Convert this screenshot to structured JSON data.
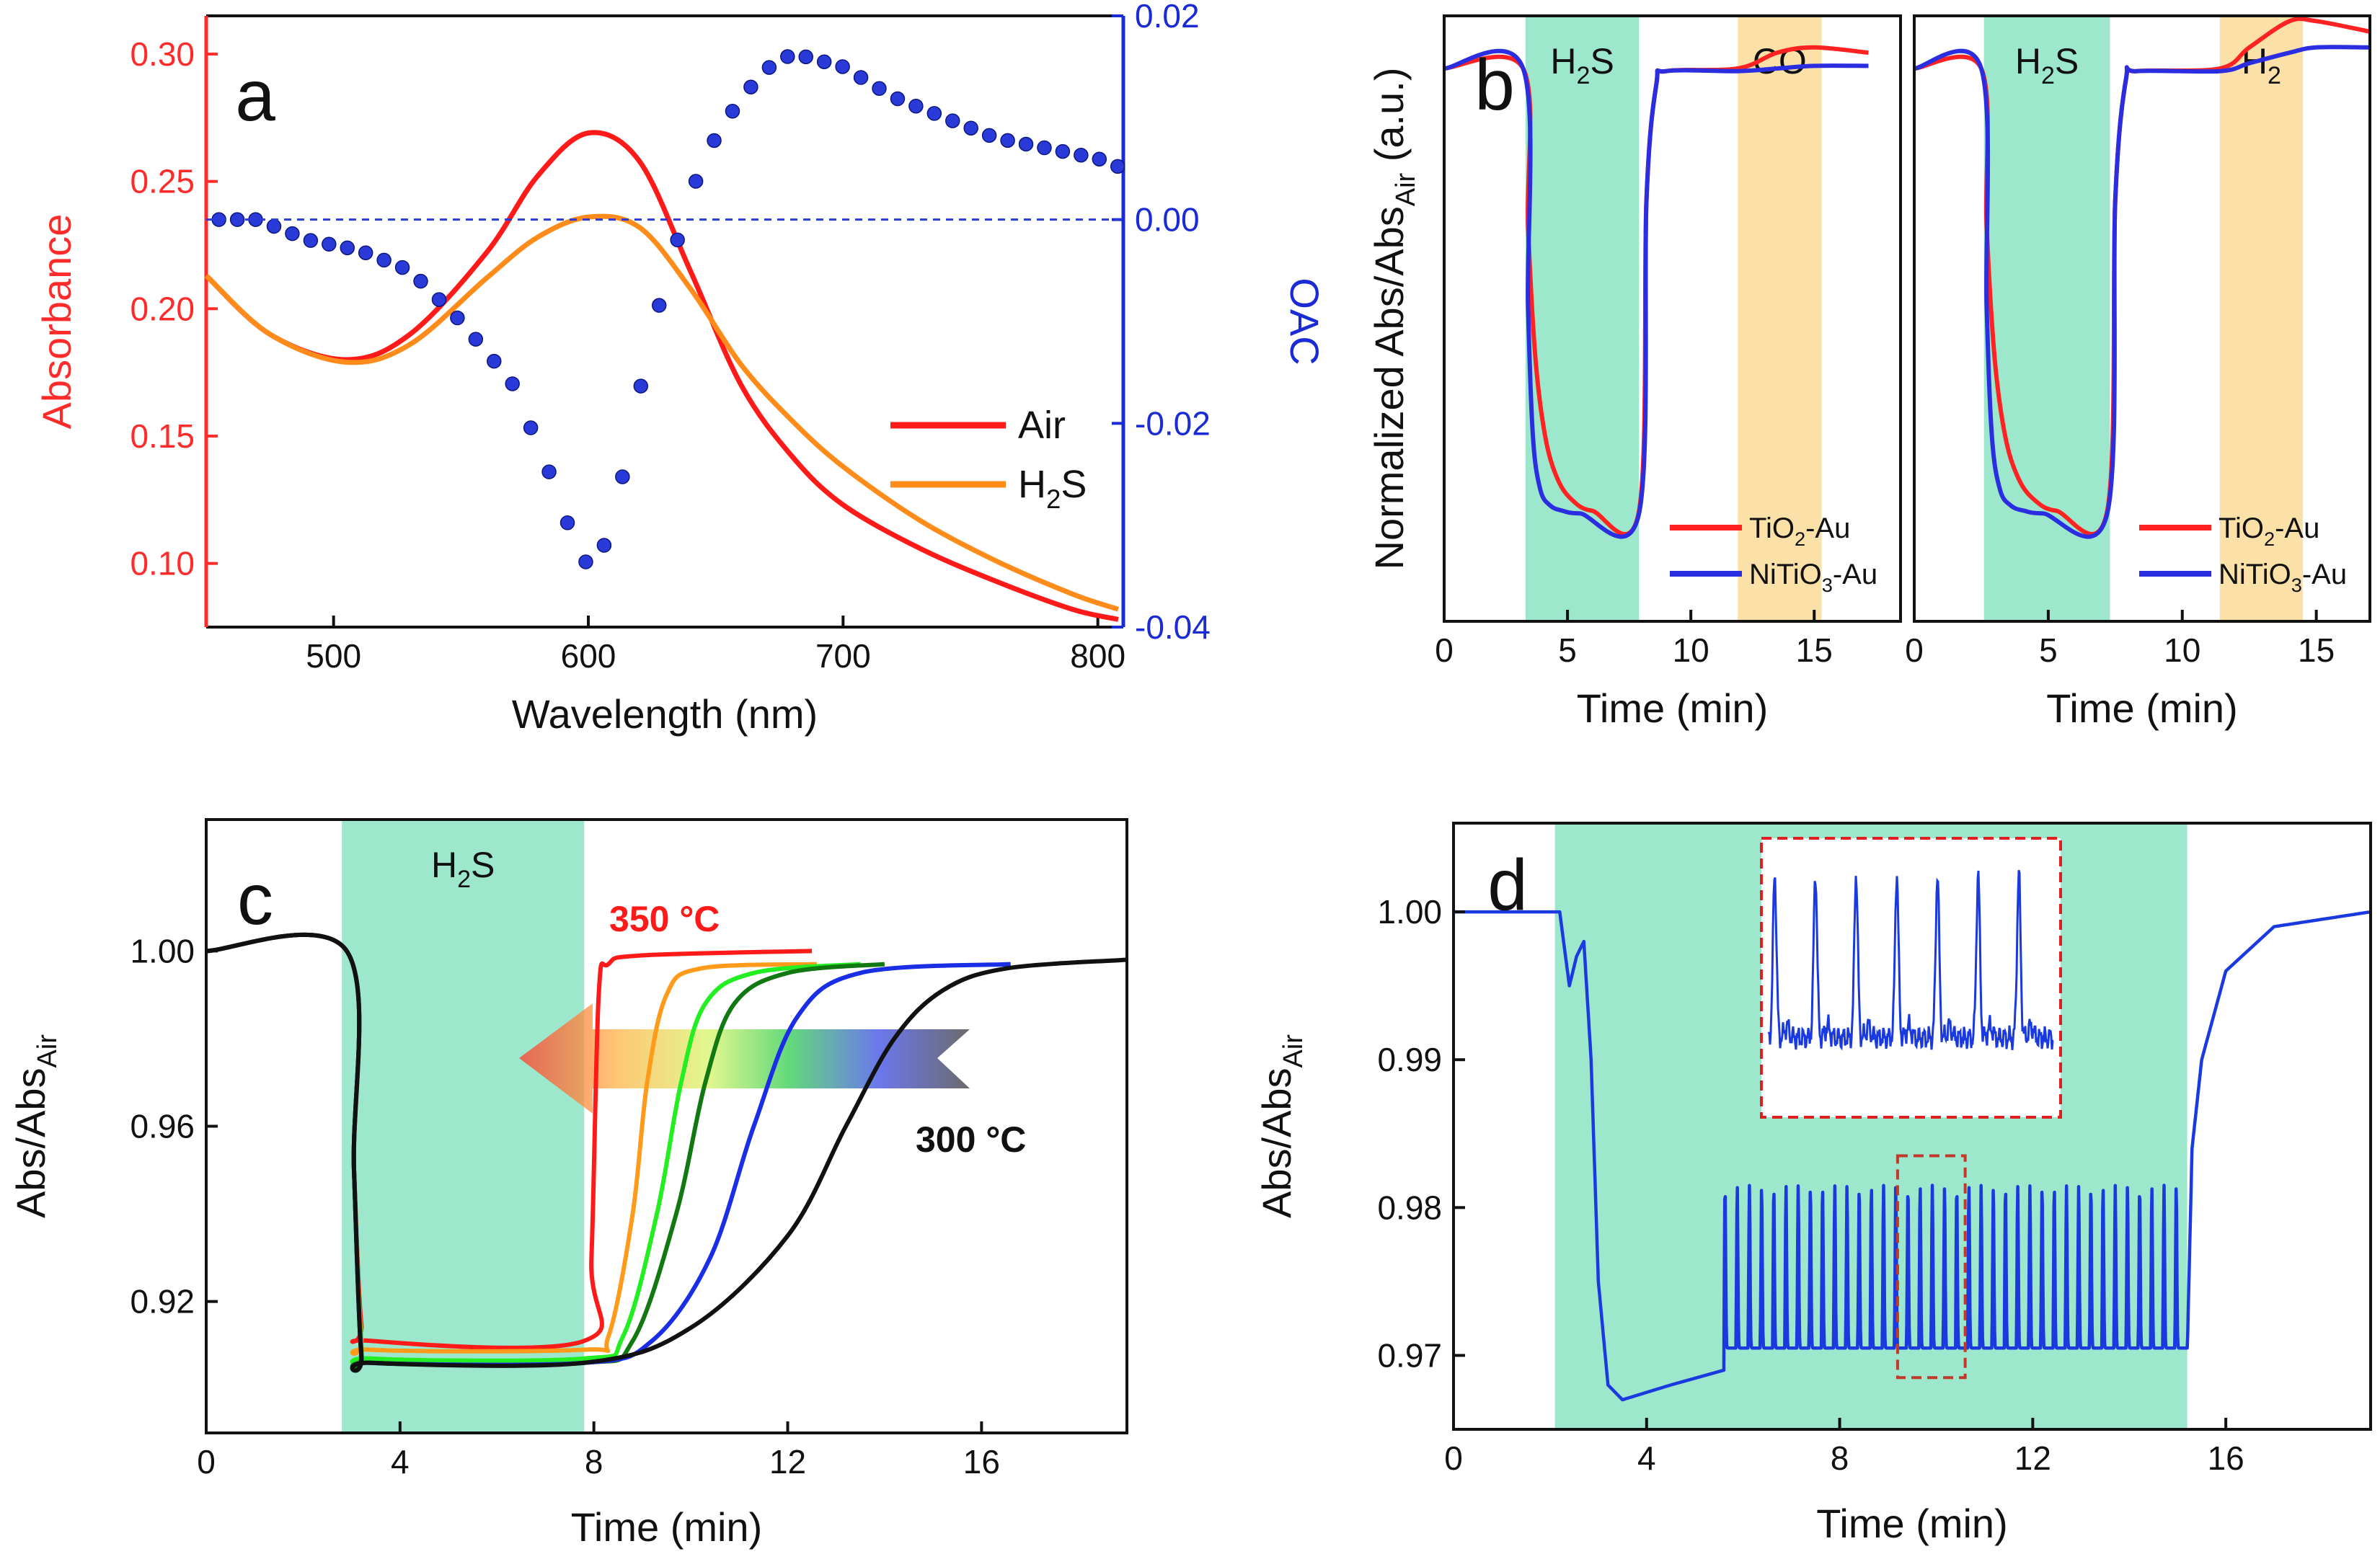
{
  "chart_data": [
    {
      "panel": "a",
      "type": "line",
      "xlabel": "Wavelength (nm)",
      "ylabel": "Absorbance",
      "y2label": "OAC",
      "xlim": [
        450,
        810
      ],
      "ylim": [
        0.075,
        0.315
      ],
      "y2lim": [
        -0.04,
        0.02
      ],
      "xticks": [
        "500",
        "600",
        "700",
        "800"
      ],
      "xtick_values": [
        500,
        600,
        700,
        800
      ],
      "yticks": [
        "0.10",
        "0.15",
        "0.20",
        "0.25",
        "0.30"
      ],
      "ytick_values": [
        0.1,
        0.15,
        0.2,
        0.25,
        0.3
      ],
      "y2ticks": [
        "-0.04",
        "-0.02",
        "0.00",
        "0.02"
      ],
      "y2tick_values": [
        -0.04,
        -0.02,
        0.0,
        0.02
      ],
      "legend_position": "right",
      "colors": {
        "axis_left": "#ff2a2a",
        "axis_right": "#1a2bd6"
      },
      "series": [
        {
          "name": "Air",
          "color": "#ff1a1a",
          "x": [
            450,
            475,
            505,
            530,
            560,
            580,
            600,
            620,
            640,
            660,
            680,
            700,
            730,
            760,
            790,
            808
          ],
          "y": [
            0.213,
            0.19,
            0.18,
            0.19,
            0.222,
            0.252,
            0.269,
            0.258,
            0.215,
            0.17,
            0.142,
            0.123,
            0.106,
            0.093,
            0.082,
            0.078
          ]
        },
        {
          "name_parts": [
            "H",
            "2",
            "S"
          ],
          "color": "#ff8c1a",
          "x": [
            450,
            475,
            505,
            530,
            560,
            580,
            600,
            620,
            640,
            660,
            680,
            700,
            730,
            760,
            790,
            808
          ],
          "y": [
            0.213,
            0.19,
            0.179,
            0.186,
            0.212,
            0.228,
            0.236,
            0.232,
            0.208,
            0.178,
            0.156,
            0.138,
            0.117,
            0.101,
            0.088,
            0.082
          ]
        },
        {
          "role": "OAC",
          "axis": "right",
          "style": "dots",
          "color": "#2a3ad8",
          "x": [
            450,
            470,
            490,
            510,
            530,
            550,
            570,
            585,
            595,
            600,
            605,
            612,
            620,
            630,
            645,
            660,
            675,
            685,
            700,
            720,
            740,
            760,
            780,
            800,
            810
          ],
          "y": [
            0.0,
            0.0,
            -0.002,
            -0.003,
            -0.005,
            -0.01,
            -0.016,
            -0.025,
            -0.032,
            -0.034,
            -0.033,
            -0.027,
            -0.017,
            -0.006,
            0.006,
            0.012,
            0.016,
            0.016,
            0.015,
            0.012,
            0.01,
            0.008,
            0.007,
            0.006,
            0.005
          ]
        },
        {
          "role": "zero-reference",
          "axis": "right",
          "style": "dashed",
          "color": "#2a3ad8",
          "x": [
            450,
            810
          ],
          "y": [
            0.0,
            0.0
          ]
        }
      ],
      "panel_label": "a"
    },
    {
      "panel": "b-left",
      "type": "line",
      "xlabel": "Time (min)",
      "ylabel": "Normalized Abs/Abs",
      "ylabel_sub": "Air",
      "ylabel_suffix": " (a.u.)",
      "xlim": [
        0,
        18.5
      ],
      "ylim": [
        -0.05,
        1.1
      ],
      "xticks": [
        "0",
        "5",
        "10",
        "15"
      ],
      "xtick_values": [
        0,
        5,
        10,
        15
      ],
      "panel_label": "b",
      "shaded_regions": [
        {
          "label_parts": [
            "H",
            "2",
            "S"
          ],
          "x": [
            3.3,
            7.9
          ],
          "color": "#9de8cc"
        },
        {
          "label": "CO",
          "x": [
            11.9,
            15.3
          ],
          "color": "#fbe0a8"
        }
      ],
      "legend_position": "bottom-right",
      "series": [
        {
          "name_parts": [
            "TiO",
            "2",
            "-Au"
          ],
          "color": "#ff2222",
          "x": [
            0,
            3.2,
            3.4,
            3.7,
            4.1,
            4.6,
            5.2,
            6,
            7.9,
            8.2,
            8.6,
            9,
            11.9,
            13.5,
            15,
            17.2
          ],
          "y": [
            1.0,
            1.0,
            0.7,
            0.45,
            0.3,
            0.22,
            0.18,
            0.16,
            0.16,
            0.75,
            0.97,
            0.995,
            1.0,
            1.03,
            1.04,
            1.03
          ]
        },
        {
          "name_parts": [
            "NiTiO",
            "3",
            "-Au"
          ],
          "color": "#2a2ee0",
          "x": [
            0,
            3.2,
            3.4,
            3.6,
            3.9,
            4.3,
            4.8,
            5.5,
            7.9,
            8.2,
            8.6,
            9,
            11.9,
            13.5,
            15,
            17.2
          ],
          "y": [
            1.0,
            1.0,
            0.55,
            0.3,
            0.2,
            0.17,
            0.16,
            0.155,
            0.155,
            0.75,
            0.97,
            0.995,
            0.995,
            1.0,
            1.005,
            1.005
          ]
        }
      ]
    },
    {
      "panel": "b-right",
      "type": "line",
      "xlabel": "Time (min)",
      "xlim": [
        0,
        17
      ],
      "ylim": [
        -0.05,
        1.1
      ],
      "xticks": [
        "0",
        "5",
        "10",
        "15"
      ],
      "xtick_values": [
        0,
        5,
        10,
        15
      ],
      "shaded_regions": [
        {
          "label_parts": [
            "H",
            "2",
            "S"
          ],
          "x": [
            2.6,
            7.3
          ],
          "color": "#9de8cc"
        },
        {
          "label_parts": [
            "H",
            "2"
          ],
          "x": [
            11.4,
            14.5
          ],
          "color": "#fbe0a8"
        }
      ],
      "legend_position": "bottom-right",
      "series": [
        {
          "name_parts": [
            "TiO",
            "2",
            "-Au"
          ],
          "color": "#ff2222",
          "x": [
            0,
            2.5,
            2.7,
            3,
            3.4,
            3.9,
            4.5,
            5.3,
            7.2,
            7.5,
            7.9,
            8.3,
            11.4,
            12.5,
            14,
            15,
            17
          ],
          "y": [
            1.0,
            1.0,
            0.7,
            0.45,
            0.3,
            0.22,
            0.18,
            0.16,
            0.16,
            0.75,
            0.98,
            0.995,
            1.0,
            1.04,
            1.09,
            1.09,
            1.07
          ]
        },
        {
          "name_parts": [
            "NiTiO",
            "3",
            "-Au"
          ],
          "color": "#2a2ee0",
          "x": [
            0,
            2.5,
            2.7,
            2.9,
            3.2,
            3.6,
            4.1,
            4.8,
            7.2,
            7.5,
            7.9,
            8.3,
            11.4,
            12.5,
            14,
            15,
            17
          ],
          "y": [
            1.0,
            1.0,
            0.55,
            0.3,
            0.2,
            0.17,
            0.16,
            0.155,
            0.155,
            0.75,
            0.98,
            0.995,
            0.995,
            1.01,
            1.03,
            1.04,
            1.04
          ]
        }
      ]
    },
    {
      "panel": "c",
      "type": "line",
      "xlabel": "Time (min)",
      "ylabel": "Abs/Abs",
      "ylabel_sub": "Air",
      "xlim": [
        0,
        19
      ],
      "ylim": [
        0.89,
        1.03
      ],
      "xticks": [
        "0",
        "4",
        "8",
        "12",
        "16"
      ],
      "xtick_values": [
        0,
        4,
        8,
        12,
        16
      ],
      "yticks": [
        "0.92",
        "0.96",
        "1.00"
      ],
      "ytick_values": [
        0.92,
        0.96,
        1.0
      ],
      "panel_label": "c",
      "shaded_regions": [
        {
          "label_parts": [
            "H",
            "2",
            "S"
          ],
          "x": [
            2.8,
            7.8
          ],
          "color": "#9de8cc"
        }
      ],
      "annotations": [
        {
          "text": "350 °C",
          "color": "#ff1a1a"
        },
        {
          "text": "300 °C",
          "color": "#111111"
        }
      ],
      "series": [
        {
          "color": "#ff1a1a",
          "x": [
            0,
            2.9,
            3.05,
            3.2,
            3.4,
            7.8,
            7.95,
            8.1,
            8.3,
            9,
            12.5
          ],
          "y": [
            1.0,
            1.0,
            0.95,
            0.915,
            0.911,
            0.911,
            0.93,
            0.99,
            0.997,
            0.999,
            1.0
          ]
        },
        {
          "color": "#ff9a1a",
          "x": [
            0,
            2.9,
            3.05,
            3.2,
            3.4,
            7.8,
            8.3,
            8.8,
            9.1,
            9.5,
            10.2,
            12.6
          ],
          "y": [
            1.0,
            1.0,
            0.95,
            0.912,
            0.909,
            0.909,
            0.912,
            0.94,
            0.97,
            0.99,
            0.996,
            0.997
          ]
        },
        {
          "color": "#22ee22",
          "x": [
            0,
            2.9,
            3.05,
            3.2,
            3.4,
            7.8,
            8.6,
            9.3,
            9.8,
            10.3,
            11.3,
            13.5
          ],
          "y": [
            1.0,
            1.0,
            0.95,
            0.91,
            0.907,
            0.907,
            0.912,
            0.94,
            0.97,
            0.988,
            0.995,
            0.997
          ]
        },
        {
          "color": "#127812",
          "x": [
            0,
            2.9,
            3.05,
            3.2,
            3.4,
            7.8,
            8.8,
            9.7,
            10.3,
            10.9,
            12,
            14
          ],
          "y": [
            1.0,
            1.0,
            0.95,
            0.909,
            0.906,
            0.906,
            0.911,
            0.94,
            0.97,
            0.988,
            0.995,
            0.997
          ]
        },
        {
          "color": "#1a2ee6",
          "x": [
            0,
            2.9,
            3.05,
            3.2,
            3.4,
            7.8,
            9.2,
            10.4,
            11.3,
            12.2,
            13.5,
            16.6
          ],
          "y": [
            1.0,
            1.0,
            0.95,
            0.908,
            0.906,
            0.906,
            0.911,
            0.93,
            0.96,
            0.985,
            0.995,
            0.997
          ]
        },
        {
          "color": "#111111",
          "x": [
            0,
            2.9,
            3.05,
            3.2,
            3.4,
            7.8,
            10,
            12,
            13.2,
            14.2,
            15.2,
            16.5,
            19
          ],
          "y": [
            1.0,
            1.0,
            0.95,
            0.908,
            0.906,
            0.906,
            0.914,
            0.935,
            0.96,
            0.98,
            0.991,
            0.996,
            0.998
          ]
        }
      ]
    },
    {
      "panel": "d",
      "type": "line",
      "xlabel": "Time (min)",
      "ylabel": "Abs/Abs",
      "ylabel_sub": "Air",
      "xlim": [
        0,
        19
      ],
      "ylim": [
        0.965,
        1.006
      ],
      "xticks": [
        "0",
        "4",
        "8",
        "12",
        "16"
      ],
      "xtick_values": [
        0,
        4,
        8,
        12,
        16
      ],
      "yticks": [
        "0.97",
        "0.98",
        "0.99",
        "1.00"
      ],
      "ytick_values": [
        0.97,
        0.98,
        0.99,
        1.0
      ],
      "panel_label": "d",
      "shaded_regions": [
        {
          "x": [
            2.1,
            15.2
          ],
          "color": "#9de8cc"
        }
      ],
      "series": [
        {
          "color": "#1a3ae0",
          "style": "oscillating",
          "x_base": [
            0,
            2.2,
            2.4,
            2.55,
            2.7,
            2.85,
            3.0,
            3.2,
            3.5,
            4.5,
            5.6,
            15.2,
            15.3,
            15.5,
            16,
            17,
            19
          ],
          "y_base": [
            1.0,
            1.0,
            0.995,
            0.997,
            0.998,
            0.99,
            0.975,
            0.968,
            0.967,
            0.968,
            0.969,
            0.97,
            0.984,
            0.99,
            0.996,
            0.999,
            1.0
          ],
          "oscillation": {
            "start": 5.6,
            "end": 15.2,
            "cycles": 38,
            "low": 0.9705,
            "high": 0.9815
          }
        }
      ],
      "highlight_box_x": [
        9.2,
        10.6
      ],
      "inset_peaks": 7
    }
  ]
}
